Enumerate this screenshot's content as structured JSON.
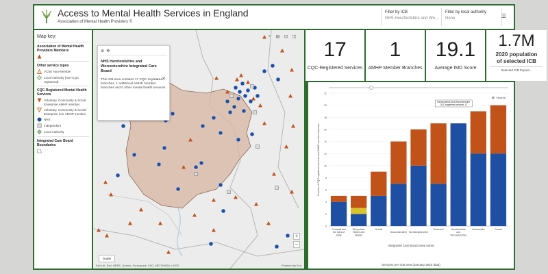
{
  "header": {
    "title": "Access to Mental Health Services in England",
    "subtitle": "Association of Mental Health Providers ©",
    "filter_icb_label": "Filter by ICB",
    "filter_icb_value": "NHS Herefordshire and Worce...",
    "filter_la_label": "Filter by local authority",
    "filter_la_value": "None"
  },
  "key": {
    "title": "Map key:",
    "sec1_title": "Association of Mental Health Providers Members",
    "sec2_title": "Other service types",
    "other_items": [
      "VCSE Non-Member",
      "Local Authority (non-CQC registered)"
    ],
    "sec3_title": "CQC-Registered Mental Health Services",
    "cqc_items": [
      "Voluntary, Community & Social Enterprise AMHP member",
      "Voluntary, Community & Social Enterprise non-AMHP member",
      "NHS",
      "Independent",
      "Local Authority"
    ],
    "sec4_title": "Integrated Care Board Boundaries"
  },
  "popup": {
    "title": "NHS Herefordshire and Worcestershire Integrated Care Board",
    "body": "This ICB area contains 17 CQC-registered branches, 1 additional AMHP member branches and 0 other mental health services."
  },
  "map": {
    "guide_label": "Guide",
    "attribution": "Esri UK, Esri, HERE, Garmin, Foursquare, FAO, METI/NASA, USGS",
    "powered_by": "Powered by Esri"
  },
  "stats": {
    "cqc_value": "17",
    "cqc_label": "CQC-Registered Services",
    "amhp_value": "1",
    "amhp_label": "AMHP Member Branches",
    "imd_value": "19.1",
    "imd_label": "Average IMD Score",
    "pop_value": "1.7M",
    "pop_label_1": "2020 population",
    "pop_label_2": "of selected ICB",
    "pop_select": "Selected ICB Popula..."
  },
  "colors": {
    "nhs": "#1f4fa3",
    "vcse": "#c0521a",
    "independent": "#d8c32e",
    "frame": "#2e6b2e",
    "icb_fill": "#d9b9a6"
  },
  "chart_data": {
    "type": "bar",
    "stacked": true,
    "categories": [
      "Cornwall and the Isles of Scilly",
      "Shropshire, Telford and Wrekin",
      "Norfolk",
      "Gloucestershire",
      "Northamptonshire",
      "Somerset",
      "Herefordshire and Worcestershire",
      "Lincolnshire",
      "Dorset"
    ],
    "series": [
      {
        "values": [
          4,
          2,
          5,
          7,
          10,
          7,
          17,
          12,
          12
        ]
      },
      {
        "values": [
          0,
          1,
          0,
          0,
          0,
          0,
          0,
          0,
          0
        ]
      },
      {
        "values": [
          1,
          2,
          4,
          7,
          6,
          10,
          0,
          7,
          8
        ]
      }
    ],
    "ylim": [
      0,
      22
    ],
    "yticks": [
      0,
      2,
      4,
      6,
      8,
      10,
      12,
      14,
      16,
      18,
      20,
      22
    ],
    "ylabel": "Number of CQC-registered services and AMHP member branches",
    "xlabel": "Integrated Care Board area name",
    "footer": "Services per ICB area (January 2023 data)",
    "tooltip": "Herefordshire and Worcestershire CQC-registered services: 17",
    "show_all": "Show all"
  }
}
